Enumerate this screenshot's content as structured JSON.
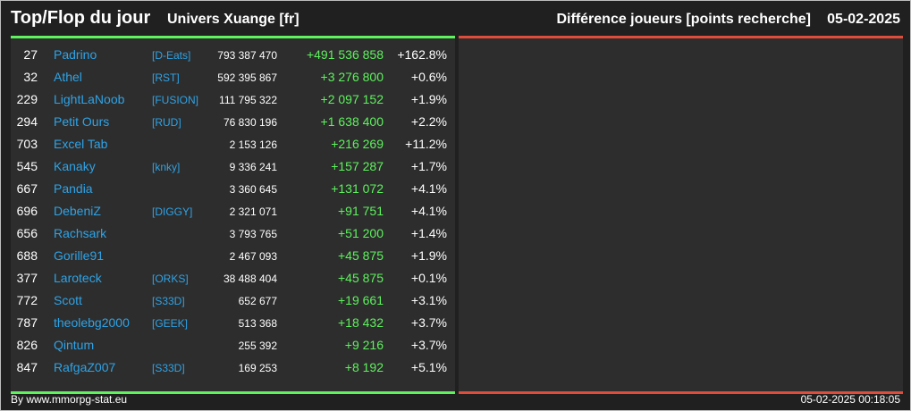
{
  "header": {
    "title": "Top/Flop du jour",
    "universe": "Univers Xuange [fr]",
    "metric": "Différence joueurs [points recherche]",
    "date": "05-02-2025"
  },
  "rows": [
    {
      "rank": "27",
      "name": "Padrino",
      "alliance": "[D-Eats]",
      "points": "793 387 470",
      "diff": "+491 536 858",
      "pct": "+162.8%"
    },
    {
      "rank": "32",
      "name": "Athel",
      "alliance": "[RST]",
      "points": "592 395 867",
      "diff": "+3 276 800",
      "pct": "+0.6%"
    },
    {
      "rank": "229",
      "name": "LightLaNoob",
      "alliance": "[FUSION]",
      "points": "111 795 322",
      "diff": "+2 097 152",
      "pct": "+1.9%"
    },
    {
      "rank": "294",
      "name": "Petit Ours",
      "alliance": "[RUD]",
      "points": "76 830 196",
      "diff": "+1 638 400",
      "pct": "+2.2%"
    },
    {
      "rank": "703",
      "name": "Excel Tab",
      "alliance": "",
      "points": "2 153 126",
      "diff": "+216 269",
      "pct": "+11.2%"
    },
    {
      "rank": "545",
      "name": "Kanaky",
      "alliance": "[knky]",
      "points": "9 336 241",
      "diff": "+157 287",
      "pct": "+1.7%"
    },
    {
      "rank": "667",
      "name": "Pandia",
      "alliance": "",
      "points": "3 360 645",
      "diff": "+131 072",
      "pct": "+4.1%"
    },
    {
      "rank": "696",
      "name": "DebeniZ",
      "alliance": "[DIGGY]",
      "points": "2 321 071",
      "diff": "+91 751",
      "pct": "+4.1%"
    },
    {
      "rank": "656",
      "name": "Rachsark",
      "alliance": "",
      "points": "3 793 765",
      "diff": "+51 200",
      "pct": "+1.4%"
    },
    {
      "rank": "688",
      "name": "Gorille91",
      "alliance": "",
      "points": "2 467 093",
      "diff": "+45 875",
      "pct": "+1.9%"
    },
    {
      "rank": "377",
      "name": "Laroteck",
      "alliance": "[ORKS]",
      "points": "38 488 404",
      "diff": "+45 875",
      "pct": "+0.1%"
    },
    {
      "rank": "772",
      "name": "Scott",
      "alliance": "[S33D]",
      "points": "652 677",
      "diff": "+19 661",
      "pct": "+3.1%"
    },
    {
      "rank": "787",
      "name": "theolebg2000",
      "alliance": "[GEEK]",
      "points": "513 368",
      "diff": "+18 432",
      "pct": "+3.7%"
    },
    {
      "rank": "826",
      "name": "Qintum",
      "alliance": "",
      "points": "255 392",
      "diff": "+9 216",
      "pct": "+3.7%"
    },
    {
      "rank": "847",
      "name": "RafgaZ007",
      "alliance": "[S33D]",
      "points": "169 253",
      "diff": "+8 192",
      "pct": "+5.1%"
    }
  ],
  "footer": {
    "credit": "By www.mmorpg-stat.eu",
    "timestamp": "05-02-2025 00:18:05"
  },
  "colors": {
    "top_accent": "#5ef25e",
    "flop_accent": "#e04c3c",
    "link": "#2ea3e6",
    "panel_bg": "#2d2d2d"
  }
}
